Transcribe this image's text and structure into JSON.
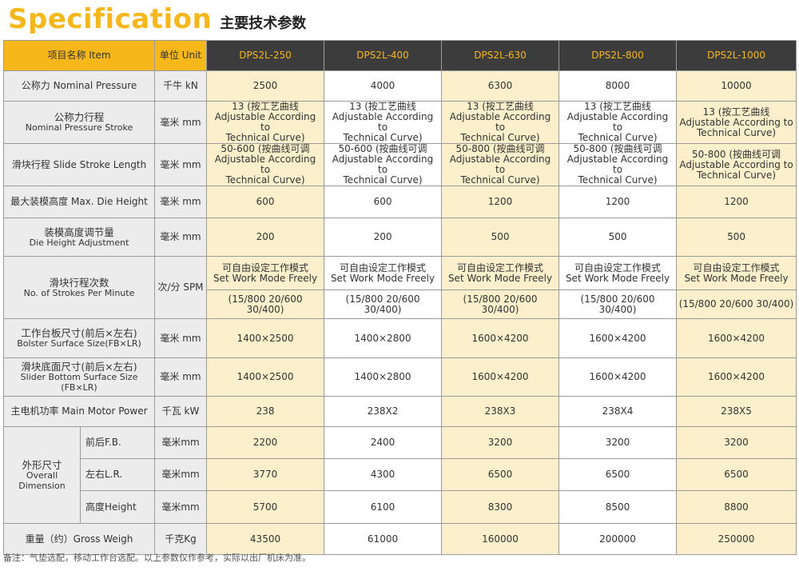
{
  "title": {
    "en": "Specification",
    "cn": "主要技术参数"
  },
  "header": {
    "name": "项目名称 Item",
    "unit": "单位 Unit",
    "models": [
      "DPS2L-250",
      "DPS2L-400",
      "DPS2L-630",
      "DPS2L-800",
      "DPS2L-1000"
    ]
  },
  "rows": {
    "nominal_pressure": {
      "name": "公称力 Nominal Pressure",
      "unit": "千牛 kN",
      "values": [
        "2500",
        "4000",
        "6300",
        "8000",
        "10000"
      ]
    },
    "nominal_stroke": {
      "name_cn": "公称力行程",
      "name_en": "Nominal Pressure Stroke",
      "unit": "毫米 mm",
      "line1": [
        "13 (按工艺曲线",
        "13 (按工艺曲线",
        "13 (按工艺曲线",
        "13 (按工艺曲线",
        "13 (按工艺曲线"
      ],
      "line2": "Adjustable According to",
      "line3": "Technical Curve)"
    },
    "slide_stroke": {
      "name": "滑块行程 Slide Stroke Length",
      "unit": "毫米 mm",
      "line1": [
        "50-600 (按曲线可调",
        "50-600 (按曲线可调",
        "50-800 (按曲线可调",
        "50-800 (按曲线可调",
        "50-800 (按曲线可调"
      ],
      "line2": "Adjustable According to",
      "line3": "Technical Curve)"
    },
    "max_die_height": {
      "name": "最大装模高度 Max. Die Height",
      "unit": "毫米 mm",
      "values": [
        "600",
        "600",
        "1200",
        "1200",
        "1200"
      ]
    },
    "die_adjust": {
      "name_cn": "装模高度调节量",
      "name_en": "Die Height Adjustment",
      "unit": "毫米 mm",
      "values": [
        "200",
        "200",
        "500",
        "500",
        "500"
      ]
    },
    "strokes_per_min": {
      "name_cn": "滑块行程次数",
      "name_en": "No. of Strokes Per Minute",
      "unit": "次/分 SPM",
      "mode_cn": "可自由设定工作模式",
      "mode_en": "Set Work Mode Freely",
      "modes": "(15/800  20/600  30/400)"
    },
    "bolster": {
      "name_cn": "工作台板尺寸(前后×左右)",
      "name_en": "Bolster Surface Size(FB×LR)",
      "unit": "毫米 mm",
      "values": [
        "1400×2500",
        "1400×2800",
        "1600×4200",
        "1600×4200",
        "1600×4200"
      ]
    },
    "slider_bottom": {
      "name_cn": "滑块底面尺寸(前后×左右)",
      "name_en": "Slider Bottom Surface Size (FB×LR)",
      "unit": "毫米 mm",
      "values": [
        "1400×2500",
        "1400×2800",
        "1600×4200",
        "1600×4200",
        "1600×4200"
      ]
    },
    "motor": {
      "name": "主电机功率 Main Motor Power",
      "unit": "千瓦 kW",
      "values": [
        "238",
        "238X2",
        "238X3",
        "238X4",
        "238X5"
      ]
    },
    "dimension": {
      "name_cn": "外形尺寸",
      "name_en1": "Overall",
      "name_en2": "Dimension",
      "fb": {
        "label": "前后F.B.",
        "unit": "毫米mm",
        "values": [
          "2200",
          "2400",
          "3200",
          "3200",
          "3200"
        ]
      },
      "lr": {
        "label": "左右L.R.",
        "unit": "毫米mm",
        "values": [
          "3770",
          "4300",
          "6500",
          "6500",
          "6500"
        ]
      },
      "h": {
        "label": "高度Height",
        "unit": "毫米mm",
        "values": [
          "5700",
          "6100",
          "8300",
          "8500",
          "8800"
        ]
      }
    },
    "weight": {
      "name": "重量（约）Gross Weigh",
      "unit": "千克Kg",
      "values": [
        "43500",
        "61000",
        "160000",
        "200000",
        "250000"
      ]
    }
  },
  "note": "备注：气垫选配，移动工作台选配。以上参数仅作参考，实际以出厂机床为准。"
}
